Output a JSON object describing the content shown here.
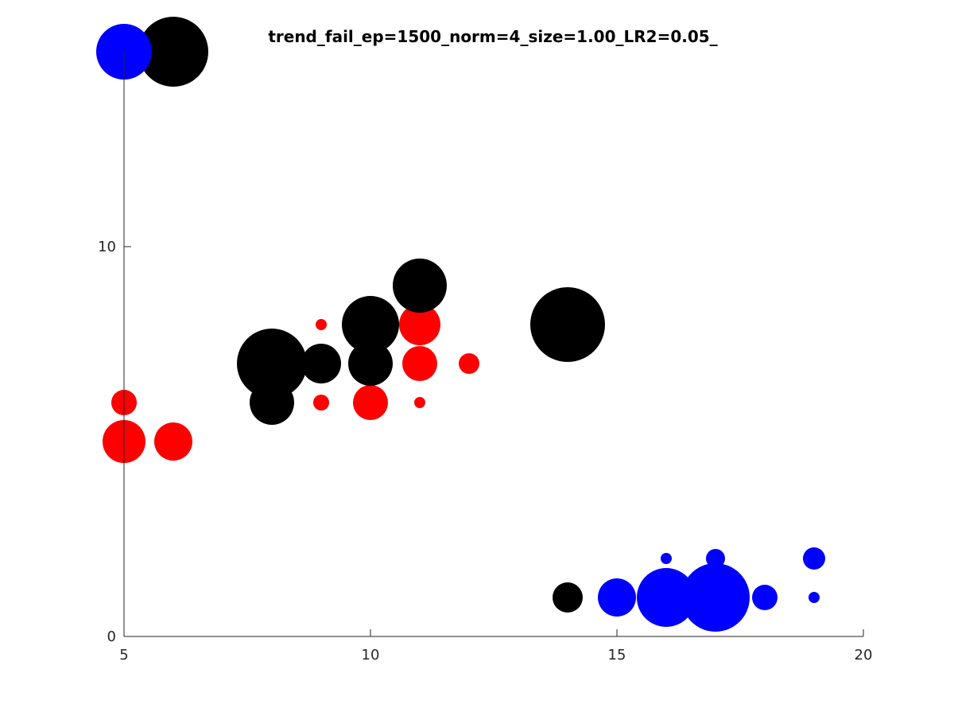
{
  "chart_data": {
    "type": "scatter",
    "title": "trend_fail_ep=1500_norm=4_size=1.00_LR2=0.05_",
    "xlabel": "",
    "ylabel": "",
    "xlim": [
      5,
      20
    ],
    "ylim": [
      0,
      15
    ],
    "xticks": [
      5,
      10,
      15,
      20
    ],
    "yticks": [
      0,
      10
    ],
    "grid": false,
    "legend": "none",
    "series": [
      {
        "color": "#ff0000",
        "points": [
          {
            "x": 5,
            "y": 6,
            "size": 16
          },
          {
            "x": 5,
            "y": 5,
            "size": 27
          },
          {
            "x": 6,
            "y": 5,
            "size": 24
          },
          {
            "x": 9,
            "y": 8,
            "size": 7
          },
          {
            "x": 9,
            "y": 6,
            "size": 10
          },
          {
            "x": 10,
            "y": 6,
            "size": 22
          },
          {
            "x": 11,
            "y": 8,
            "size": 26
          },
          {
            "x": 11,
            "y": 7,
            "size": 22
          },
          {
            "x": 11,
            "y": 6,
            "size": 7
          },
          {
            "x": 12,
            "y": 7,
            "size": 13
          }
        ]
      },
      {
        "color": "#000000",
        "points": [
          {
            "x": 6,
            "y": 15,
            "size": 44
          },
          {
            "x": 8,
            "y": 7,
            "size": 44
          },
          {
            "x": 8,
            "y": 6,
            "size": 28
          },
          {
            "x": 9,
            "y": 7,
            "size": 25
          },
          {
            "x": 10,
            "y": 8,
            "size": 36
          },
          {
            "x": 10,
            "y": 7,
            "size": 28
          },
          {
            "x": 11,
            "y": 9,
            "size": 34
          },
          {
            "x": 14,
            "y": 8,
            "size": 47
          },
          {
            "x": 14,
            "y": 1,
            "size": 19
          }
        ]
      },
      {
        "color": "#0000ff",
        "points": [
          {
            "x": 5,
            "y": 15,
            "size": 35
          },
          {
            "x": 15,
            "y": 1,
            "size": 24
          },
          {
            "x": 16,
            "y": 1,
            "size": 37
          },
          {
            "x": 16,
            "y": 2,
            "size": 7
          },
          {
            "x": 17,
            "y": 1,
            "size": 43
          },
          {
            "x": 17,
            "y": 2,
            "size": 12
          },
          {
            "x": 18,
            "y": 1,
            "size": 16
          },
          {
            "x": 19,
            "y": 2,
            "size": 14
          },
          {
            "x": 19,
            "y": 1,
            "size": 7
          }
        ]
      }
    ]
  }
}
